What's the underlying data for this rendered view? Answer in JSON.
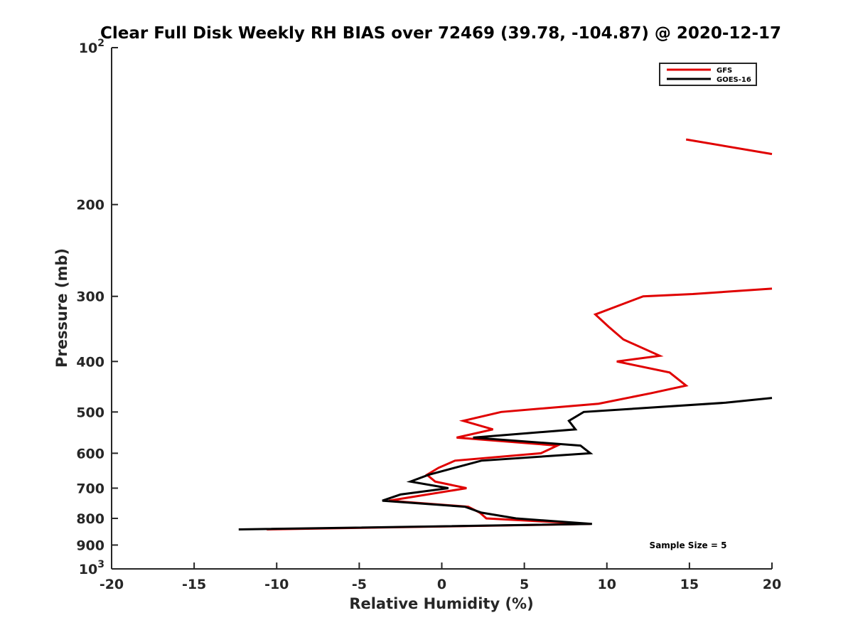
{
  "chart_data": {
    "type": "line",
    "title": "Clear Full Disk Weekly RH BIAS over 72469 (39.78, -104.87) @ 2020-12-17",
    "xlabel": "Relative Humidity (%)",
    "ylabel": "Pressure (mb)",
    "xlim": [
      -20,
      20
    ],
    "ylim": [
      100,
      1000
    ],
    "y_scale": "log",
    "y_reversed": true,
    "grid": false,
    "legend_position": "top-right",
    "x_ticks": [
      "-20",
      "-15",
      "-10",
      "-5",
      "0",
      "5",
      "10",
      "15",
      "20"
    ],
    "y_ticks": [
      {
        "value": 100,
        "base": "10",
        "exp": "2"
      },
      {
        "value": 200,
        "label": "200"
      },
      {
        "value": 300,
        "label": "300"
      },
      {
        "value": 400,
        "label": "400"
      },
      {
        "value": 500,
        "label": "500"
      },
      {
        "value": 600,
        "label": "600"
      },
      {
        "value": 700,
        "label": "700"
      },
      {
        "value": 800,
        "label": "800"
      },
      {
        "value": 900,
        "label": "900"
      },
      {
        "value": 1000,
        "base": "10",
        "exp": "3"
      }
    ],
    "series": [
      {
        "name": "GFS",
        "color": "#e00000",
        "segments": [
          [
            [
              14.8,
              150
            ],
            [
              20,
              160
            ]
          ],
          [
            [
              20,
              290
            ],
            [
              15.2,
              297
            ],
            [
              12.2,
              300
            ],
            [
              9.3,
              325
            ],
            [
              10.1,
              343
            ],
            [
              11,
              363
            ],
            [
              13.2,
              390
            ],
            [
              10.6,
              400
            ],
            [
              13.8,
              420
            ],
            [
              14.8,
              445
            ],
            [
              12.7,
              460
            ],
            [
              9.5,
              482
            ],
            [
              3.6,
              500
            ],
            [
              1.3,
              520
            ],
            [
              3.1,
              540
            ],
            [
              0.9,
              560
            ],
            [
              7,
              580
            ],
            [
              6,
              600
            ],
            [
              0.8,
              620
            ],
            [
              -0.2,
              640
            ],
            [
              -0.9,
              660
            ],
            [
              -0.4,
              680
            ],
            [
              1.5,
              700
            ],
            [
              -3.2,
              740
            ],
            [
              1.6,
              760
            ],
            [
              2.3,
              780
            ],
            [
              2.7,
              800
            ],
            [
              9,
              820
            ],
            [
              -10.6,
              840
            ]
          ]
        ]
      },
      {
        "name": "GOES-16",
        "color": "#000000",
        "segments": [
          [
            [
              20,
              470
            ],
            [
              17.2,
              480
            ],
            [
              8.6,
              500
            ],
            [
              7.7,
              520
            ],
            [
              8.1,
              540
            ],
            [
              1.9,
              560
            ],
            [
              8.4,
              580
            ],
            [
              9.0,
              600
            ],
            [
              2.4,
              620
            ],
            [
              -0.8,
              660
            ],
            [
              -1.9,
              680
            ],
            [
              0.4,
              700
            ],
            [
              -2.5,
              720
            ],
            [
              -3.6,
              740
            ],
            [
              1.4,
              760
            ],
            [
              2.4,
              780
            ],
            [
              4.5,
              800
            ],
            [
              9.1,
              820
            ],
            [
              -12.3,
              840
            ]
          ]
        ]
      }
    ],
    "annotation": "Sample Size = 5"
  }
}
